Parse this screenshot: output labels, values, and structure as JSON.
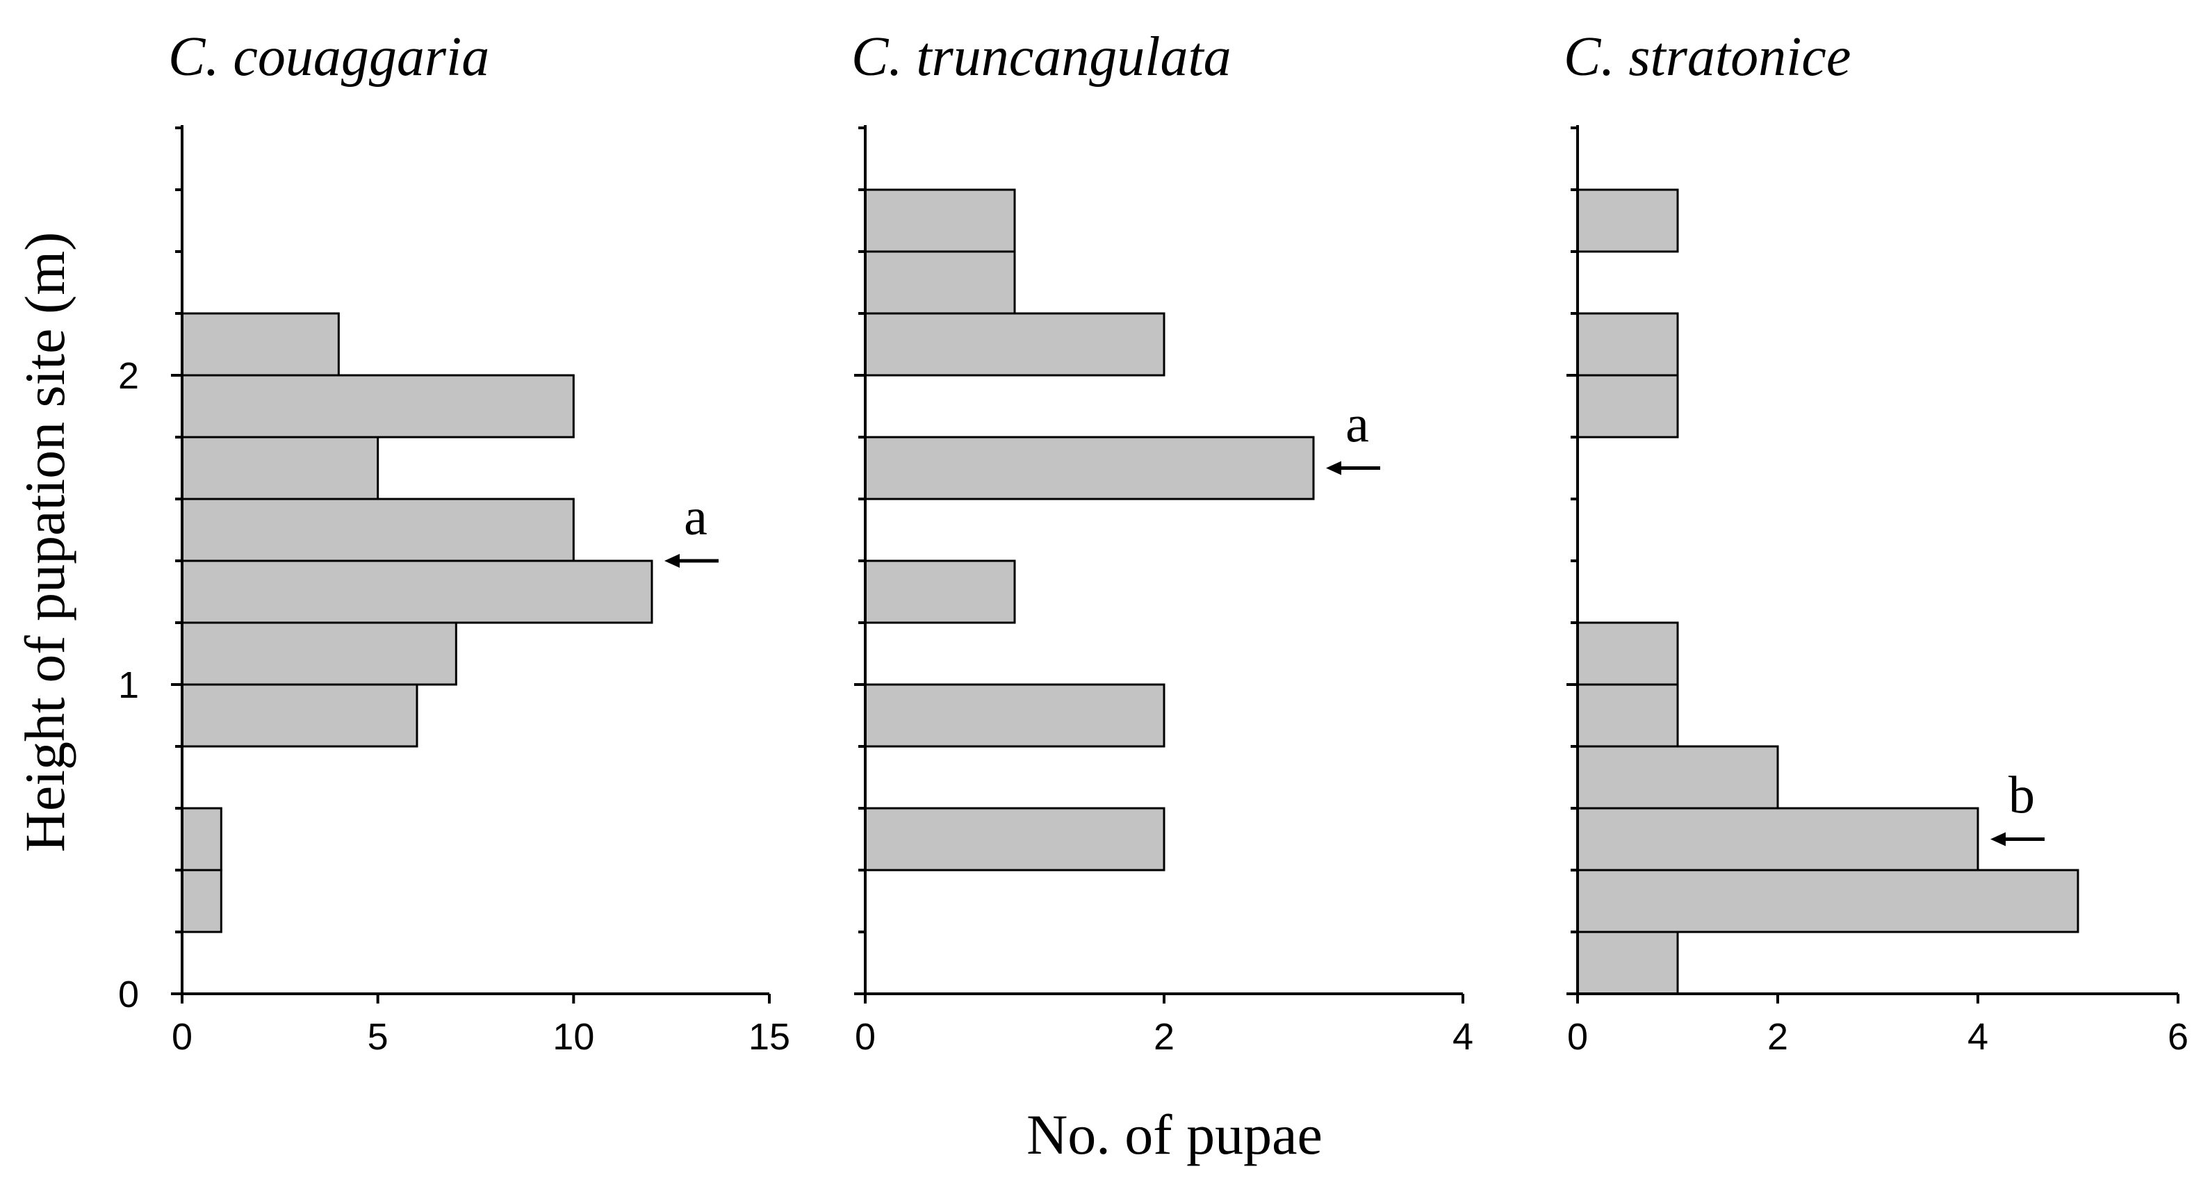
{
  "chart_data": {
    "type": "bar",
    "orientation": "horizontal",
    "shared": {
      "xlabel": "No. of pupae",
      "ylabel": "Height of pupation site (m)",
      "y_ticks": [
        0,
        1,
        2
      ],
      "ylim": [
        0,
        2.8
      ],
      "bin_width": 0.2
    },
    "panels": [
      {
        "title": "C. couaggaria",
        "xlim": [
          0,
          15
        ],
        "x_ticks": [
          0,
          5,
          10,
          15
        ],
        "bins": [
          {
            "height_from": 0.2,
            "height_to": 0.4,
            "count": 1
          },
          {
            "height_from": 0.4,
            "height_to": 0.6,
            "count": 1
          },
          {
            "height_from": 0.8,
            "height_to": 1.0,
            "count": 6
          },
          {
            "height_from": 1.0,
            "height_to": 1.2,
            "count": 7
          },
          {
            "height_from": 1.2,
            "height_to": 1.4,
            "count": 12
          },
          {
            "height_from": 1.4,
            "height_to": 1.6,
            "count": 10
          },
          {
            "height_from": 1.6,
            "height_to": 1.8,
            "count": 5
          },
          {
            "height_from": 1.8,
            "height_to": 2.0,
            "count": 10
          },
          {
            "height_from": 2.0,
            "height_to": 2.2,
            "count": 4
          }
        ],
        "marker": {
          "label": "a",
          "height": 1.4
        }
      },
      {
        "title": "C. truncangulata",
        "xlim": [
          0,
          4
        ],
        "x_ticks": [
          0,
          2,
          4
        ],
        "bins": [
          {
            "height_from": 0.4,
            "height_to": 0.6,
            "count": 2
          },
          {
            "height_from": 0.8,
            "height_to": 1.0,
            "count": 2
          },
          {
            "height_from": 1.2,
            "height_to": 1.4,
            "count": 1
          },
          {
            "height_from": 1.6,
            "height_to": 1.8,
            "count": 3
          },
          {
            "height_from": 2.0,
            "height_to": 2.2,
            "count": 2
          },
          {
            "height_from": 2.2,
            "height_to": 2.4,
            "count": 1
          },
          {
            "height_from": 2.4,
            "height_to": 2.6,
            "count": 1
          }
        ],
        "marker": {
          "label": "a",
          "height": 1.7
        }
      },
      {
        "title": "C. stratonice",
        "xlim": [
          0,
          6
        ],
        "x_ticks": [
          0,
          2,
          4,
          6
        ],
        "bins": [
          {
            "height_from": 0.0,
            "height_to": 0.2,
            "count": 1
          },
          {
            "height_from": 0.2,
            "height_to": 0.4,
            "count": 5
          },
          {
            "height_from": 0.4,
            "height_to": 0.6,
            "count": 4
          },
          {
            "height_from": 0.6,
            "height_to": 0.8,
            "count": 2
          },
          {
            "height_from": 0.8,
            "height_to": 1.0,
            "count": 1
          },
          {
            "height_from": 1.0,
            "height_to": 1.2,
            "count": 1
          },
          {
            "height_from": 1.8,
            "height_to": 2.0,
            "count": 1
          },
          {
            "height_from": 2.0,
            "height_to": 2.2,
            "count": 1
          },
          {
            "height_from": 2.4,
            "height_to": 2.6,
            "count": 1
          }
        ],
        "marker": {
          "label": "b",
          "height": 0.5
        }
      }
    ]
  }
}
